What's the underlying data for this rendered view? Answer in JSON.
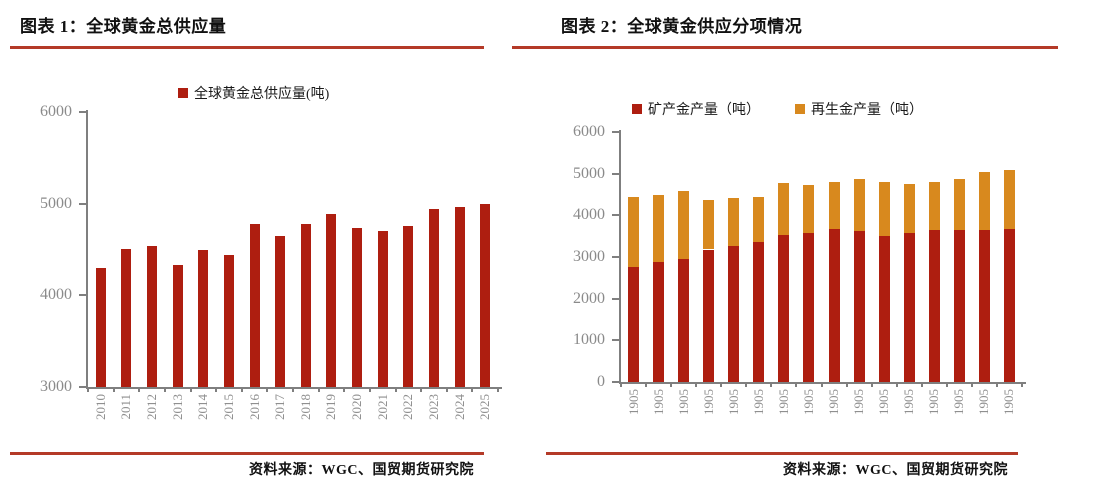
{
  "colors": {
    "bar_red": "#AE1E10",
    "bar_orange": "#D8891E",
    "rule_red": "#B43A28",
    "axis_gray": "#7f7f7f",
    "tick_label_gray": "#8a8a8a"
  },
  "left_panel": {
    "title": "图表 1：全球黄金总供应量",
    "source": "资料来源：WGC、国贸期货研究院"
  },
  "right_panel": {
    "title": "图表 2：全球黄金供应分项情况",
    "source": "资料来源：WGC、国贸期货研究院"
  },
  "chart_data": [
    {
      "type": "bar",
      "title": "全球黄金总供应量",
      "legend": [
        "全球黄金总供应量(吨)"
      ],
      "legend_position": "top",
      "categories": [
        "2010",
        "2011",
        "2012",
        "2013",
        "2014",
        "2015",
        "2016",
        "2017",
        "2018",
        "2019",
        "2020",
        "2021",
        "2022",
        "2023",
        "2024",
        "2025"
      ],
      "values": [
        4300,
        4510,
        4540,
        4330,
        4500,
        4440,
        4780,
        4650,
        4780,
        4890,
        4730,
        4700,
        4760,
        4940,
        4960,
        5000
      ],
      "ylabel": "吨",
      "ylim": [
        3000,
        6000
      ],
      "yticks": [
        3000,
        4000,
        5000,
        6000
      ],
      "bar_color": "#AE1E10",
      "grid": false
    },
    {
      "type": "bar",
      "stacked": true,
      "title": "全球黄金供应分项情况",
      "legend_position": "top",
      "categories": [
        "1905",
        "1905",
        "1905",
        "1905",
        "1905",
        "1905",
        "1905",
        "1905",
        "1905",
        "1905",
        "1905",
        "1905",
        "1905",
        "1905",
        "1905",
        "1905"
      ],
      "series": [
        {
          "name": "矿产金产量（吨）",
          "color": "#AE1E10",
          "values": [
            2760,
            2880,
            2960,
            3180,
            3270,
            3370,
            3520,
            3580,
            3670,
            3620,
            3500,
            3580,
            3650,
            3650,
            3640,
            3670
          ]
        },
        {
          "name": "再生金产量（吨）",
          "color": "#D8891E",
          "values": [
            1680,
            1620,
            1630,
            1190,
            1150,
            1080,
            1260,
            1140,
            1140,
            1260,
            1310,
            1170,
            1160,
            1230,
            1400,
            1410
          ]
        }
      ],
      "ylabel": "吨",
      "ylim": [
        0,
        6000
      ],
      "yticks": [
        0,
        1000,
        2000,
        3000,
        4000,
        5000,
        6000
      ],
      "grid": false
    }
  ]
}
